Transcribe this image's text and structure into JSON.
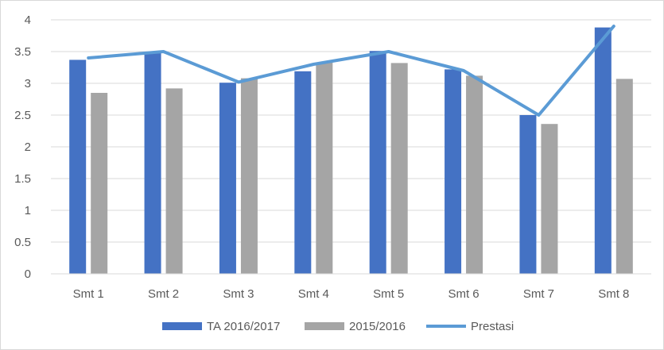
{
  "chart_data": {
    "type": "bar",
    "title": "",
    "xlabel": "",
    "ylabel": "",
    "categories": [
      "Smt 1",
      "Smt 2",
      "Smt 3",
      "Smt 4",
      "Smt 5",
      "Smt 6",
      "Smt 7",
      "Smt 8"
    ],
    "ylim": [
      0,
      4
    ],
    "yticks": [
      "0",
      "0.5",
      "1",
      "1.5",
      "2",
      "2.5",
      "3",
      "3.5",
      "4"
    ],
    "grid": true,
    "legend_position": "bottom",
    "series": [
      {
        "name": "TA 2016/2017",
        "type": "bar",
        "color": "#4472c4",
        "values": [
          3.37,
          3.48,
          3.01,
          3.19,
          3.51,
          3.22,
          2.5,
          3.88
        ]
      },
      {
        "name": "2015/2016",
        "type": "bar",
        "color": "#a5a5a5",
        "values": [
          2.85,
          2.92,
          3.08,
          3.33,
          3.32,
          3.12,
          2.36,
          3.07
        ]
      },
      {
        "name": "Prestasi",
        "type": "line",
        "color": "#5b9bd5",
        "values": [
          3.4,
          3.5,
          3.02,
          3.3,
          3.5,
          3.2,
          2.5,
          3.9
        ]
      }
    ]
  }
}
